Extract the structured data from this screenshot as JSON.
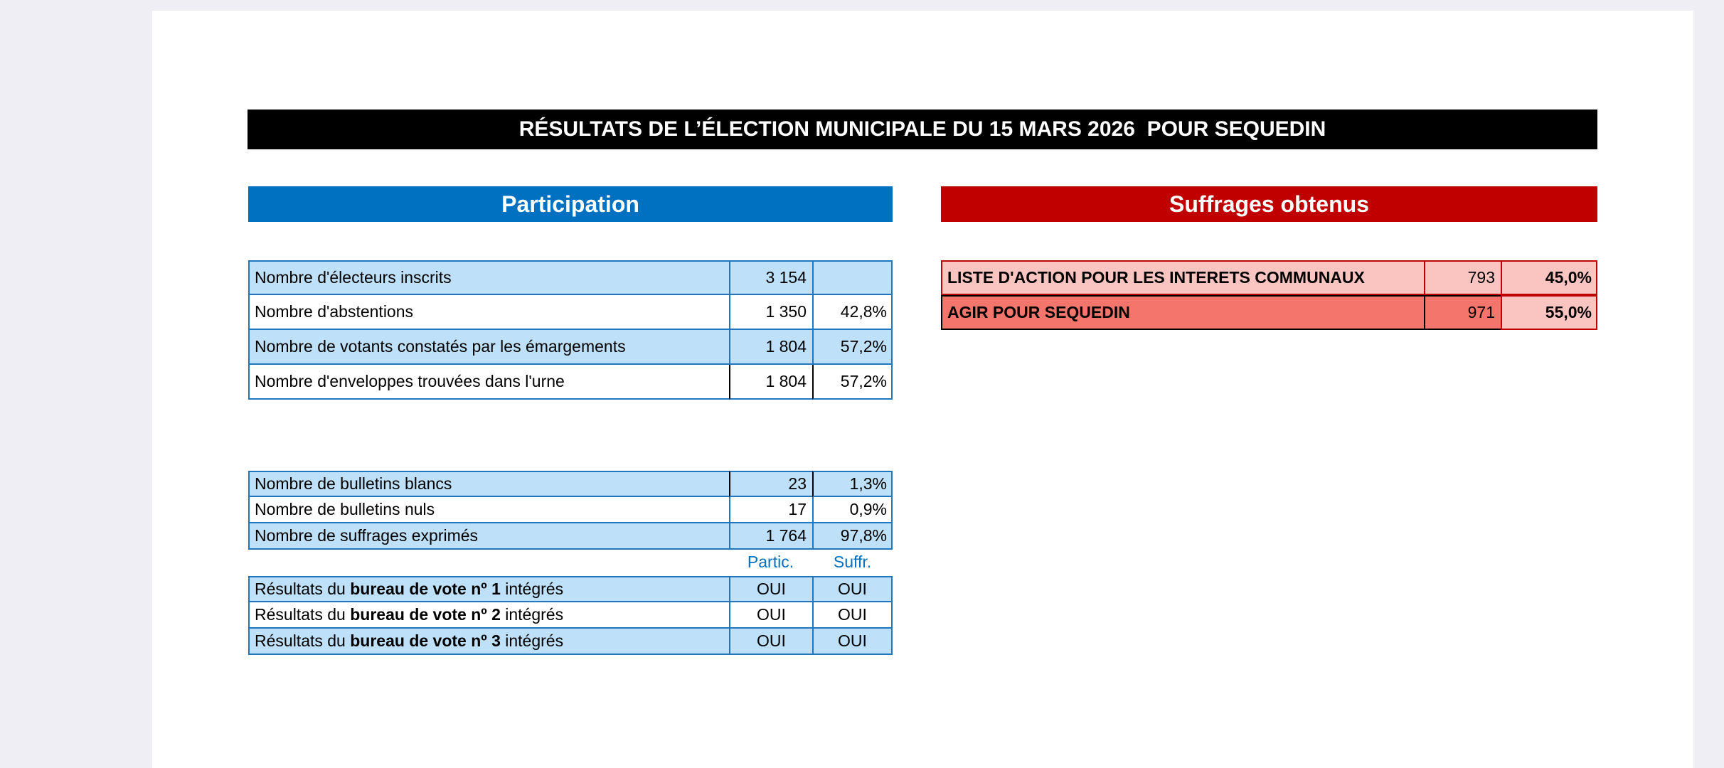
{
  "title": "RÉSULTATS DE L’ÉLECTION MUNICIPALE DU 15 MARS 2026  POUR SEQUEDIN",
  "colors": {
    "accent_blue": "#0070C0",
    "accent_red": "#C00000",
    "row_light_blue": "#BEE0F8",
    "row_light_pink": "#FAC5C0",
    "row_salmon": "#F4756C",
    "page_margin": "#F0EEF5",
    "title_bg": "#000000"
  },
  "participation": {
    "header": "Participation",
    "rows1": [
      {
        "label": "Nombre d'électeurs inscrits",
        "value": "3 154",
        "pct": ""
      },
      {
        "label": "Nombre d'abstentions",
        "value": "1 350",
        "pct": "42,8%"
      },
      {
        "label": "Nombre de votants constatés par les émargements",
        "value": "1 804",
        "pct": "57,2%"
      },
      {
        "label": "Nombre d'enveloppes trouvées dans l'urne",
        "value": "1 804",
        "pct": "57,2%"
      }
    ],
    "rows2": [
      {
        "label": "Nombre de bulletins blancs",
        "value": "23",
        "pct": "1,3%"
      },
      {
        "label": "Nombre de bulletins nuls",
        "value": "17",
        "pct": "0,9%"
      },
      {
        "label": "Nombre de suffrages exprimés",
        "value": "1 764",
        "pct": "97,8%"
      }
    ],
    "col_partic": "Partic.",
    "col_suffr": "Suffr.",
    "bureaux": [
      {
        "prefix": "Résultats du ",
        "bold": "bureau de vote nº 1",
        "suffix": " intégrés",
        "partic": "OUI",
        "suffr": "OUI"
      },
      {
        "prefix": "Résultats du ",
        "bold": "bureau de vote nº 2",
        "suffix": " intégrés",
        "partic": "OUI",
        "suffr": "OUI"
      },
      {
        "prefix": "Résultats du ",
        "bold": "bureau de vote nº 3",
        "suffix": " intégrés",
        "partic": "OUI",
        "suffr": "OUI"
      }
    ]
  },
  "suffrages": {
    "header": "Suffrages obtenus",
    "rows": [
      {
        "label": "LISTE D'ACTION POUR LES INTERETS COMMUNAUX",
        "votes": "793",
        "pct": "45,0%"
      },
      {
        "label": "AGIR POUR SEQUEDIN",
        "votes": "971",
        "pct": "55,0%"
      }
    ]
  }
}
